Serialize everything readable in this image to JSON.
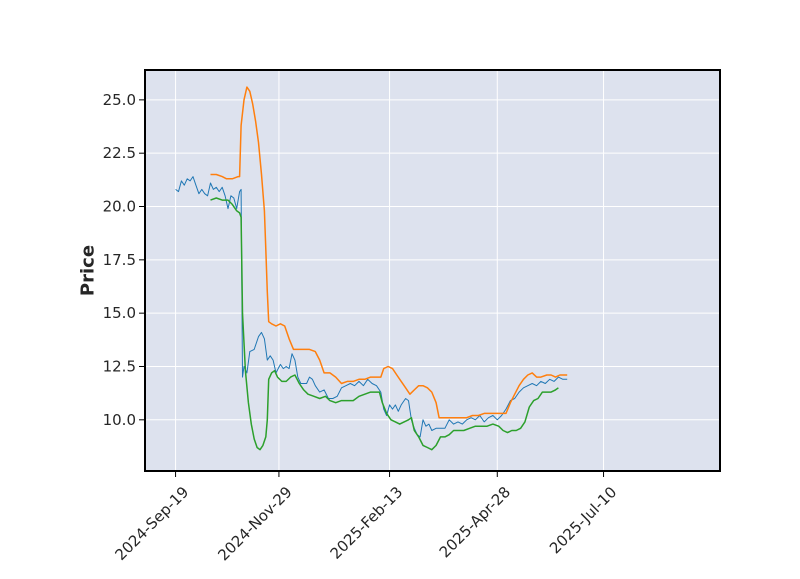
{
  "chart_data": {
    "type": "line",
    "title": "",
    "xlabel": "",
    "ylabel": "Price",
    "x_ticks": [
      "2024-Sep-19",
      "2024-Nov-29",
      "2025-Feb-13",
      "2025-Apr-28",
      "2025-Jul-10"
    ],
    "y_ticks": [
      "10.0",
      "12.5",
      "15.0",
      "17.5",
      "20.0",
      "22.5",
      "25.0"
    ],
    "xlim": [
      "2024-08-29",
      "2025-09-28"
    ],
    "ylim": [
      7.6,
      26.4
    ],
    "grid": true,
    "legend": "none",
    "background": "#dde2ee",
    "series": [
      {
        "color": "#1f77b4",
        "line_width": 1,
        "points": [
          [
            "2024-09-19",
            20.8
          ],
          [
            "2024-09-21",
            20.7
          ],
          [
            "2024-09-23",
            21.2
          ],
          [
            "2024-09-25",
            21.0
          ],
          [
            "2024-09-27",
            21.3
          ],
          [
            "2024-09-29",
            21.2
          ],
          [
            "2024-10-01",
            21.4
          ],
          [
            "2024-10-03",
            21.0
          ],
          [
            "2024-10-05",
            20.6
          ],
          [
            "2024-10-07",
            20.8
          ],
          [
            "2024-10-09",
            20.6
          ],
          [
            "2024-10-11",
            20.5
          ],
          [
            "2024-10-13",
            21.1
          ],
          [
            "2024-10-15",
            20.8
          ],
          [
            "2024-10-17",
            20.9
          ],
          [
            "2024-10-19",
            20.7
          ],
          [
            "2024-10-21",
            20.9
          ],
          [
            "2024-10-23",
            20.5
          ],
          [
            "2024-10-25",
            19.9
          ],
          [
            "2024-10-27",
            20.5
          ],
          [
            "2024-10-29",
            20.4
          ],
          [
            "2024-10-31",
            19.9
          ],
          [
            "2024-11-02",
            20.7
          ],
          [
            "2024-11-03",
            20.8
          ],
          [
            "2024-11-04",
            12.0
          ],
          [
            "2024-11-05",
            12.5
          ],
          [
            "2024-11-07",
            12.2
          ],
          [
            "2024-11-09",
            13.2
          ],
          [
            "2024-11-12",
            13.3
          ],
          [
            "2024-11-15",
            13.9
          ],
          [
            "2024-11-17",
            14.1
          ],
          [
            "2024-11-19",
            13.8
          ],
          [
            "2024-11-21",
            12.8
          ],
          [
            "2024-11-23",
            13.0
          ],
          [
            "2024-11-25",
            12.8
          ],
          [
            "2024-11-27",
            12.2
          ],
          [
            "2024-11-30",
            12.6
          ],
          [
            "2024-12-02",
            12.4
          ],
          [
            "2024-12-04",
            12.5
          ],
          [
            "2024-12-06",
            12.4
          ],
          [
            "2024-12-08",
            13.1
          ],
          [
            "2024-12-10",
            12.8
          ],
          [
            "2024-12-12",
            12.0
          ],
          [
            "2024-12-14",
            11.7
          ],
          [
            "2024-12-16",
            11.7
          ],
          [
            "2024-12-18",
            11.7
          ],
          [
            "2024-12-20",
            12.0
          ],
          [
            "2024-12-22",
            11.9
          ],
          [
            "2024-12-24",
            11.6
          ],
          [
            "2024-12-27",
            11.3
          ],
          [
            "2024-12-30",
            11.4
          ],
          [
            "2025-01-02",
            11.0
          ],
          [
            "2025-01-05",
            11.0
          ],
          [
            "2025-01-08",
            11.1
          ],
          [
            "2025-01-11",
            11.5
          ],
          [
            "2025-01-14",
            11.6
          ],
          [
            "2025-01-17",
            11.7
          ],
          [
            "2025-01-20",
            11.6
          ],
          [
            "2025-01-23",
            11.8
          ],
          [
            "2025-01-26",
            11.6
          ],
          [
            "2025-01-29",
            11.9
          ],
          [
            "2025-02-01",
            11.7
          ],
          [
            "2025-02-04",
            11.6
          ],
          [
            "2025-02-07",
            11.3
          ],
          [
            "2025-02-09",
            10.5
          ],
          [
            "2025-02-11",
            10.2
          ],
          [
            "2025-02-13",
            10.7
          ],
          [
            "2025-02-15",
            10.5
          ],
          [
            "2025-02-17",
            10.7
          ],
          [
            "2025-02-19",
            10.4
          ],
          [
            "2025-02-21",
            10.7
          ],
          [
            "2025-02-24",
            11.0
          ],
          [
            "2025-02-26",
            10.9
          ],
          [
            "2025-02-28",
            10.0
          ],
          [
            "2025-03-02",
            9.6
          ],
          [
            "2025-03-04",
            9.3
          ],
          [
            "2025-03-06",
            9.2
          ],
          [
            "2025-03-08",
            10.0
          ],
          [
            "2025-03-10",
            9.7
          ],
          [
            "2025-03-12",
            9.8
          ],
          [
            "2025-03-14",
            9.5
          ],
          [
            "2025-03-17",
            9.6
          ],
          [
            "2025-03-20",
            9.6
          ],
          [
            "2025-03-23",
            9.6
          ],
          [
            "2025-03-26",
            10.0
          ],
          [
            "2025-03-29",
            9.8
          ],
          [
            "2025-04-01",
            9.9
          ],
          [
            "2025-04-04",
            9.8
          ],
          [
            "2025-04-07",
            10.0
          ],
          [
            "2025-04-10",
            10.1
          ],
          [
            "2025-04-13",
            10.0
          ],
          [
            "2025-04-16",
            10.2
          ],
          [
            "2025-04-19",
            9.9
          ],
          [
            "2025-04-22",
            10.1
          ],
          [
            "2025-04-25",
            10.2
          ],
          [
            "2025-04-28",
            10.0
          ],
          [
            "2025-05-01",
            10.2
          ],
          [
            "2025-05-04",
            10.5
          ],
          [
            "2025-05-07",
            10.9
          ],
          [
            "2025-05-10",
            11.0
          ],
          [
            "2025-05-13",
            11.3
          ],
          [
            "2025-05-16",
            11.5
          ],
          [
            "2025-05-19",
            11.6
          ],
          [
            "2025-05-22",
            11.7
          ],
          [
            "2025-05-25",
            11.6
          ],
          [
            "2025-05-28",
            11.8
          ],
          [
            "2025-05-31",
            11.7
          ],
          [
            "2025-06-03",
            11.9
          ],
          [
            "2025-06-06",
            11.8
          ],
          [
            "2025-06-09",
            12.0
          ],
          [
            "2025-06-12",
            11.9
          ],
          [
            "2025-06-15",
            11.9
          ]
        ]
      },
      {
        "color": "#ff7f0e",
        "line_width": 1.5,
        "points": [
          [
            "2024-10-13",
            21.5
          ],
          [
            "2024-10-17",
            21.5
          ],
          [
            "2024-10-21",
            21.4
          ],
          [
            "2024-10-24",
            21.3
          ],
          [
            "2024-10-28",
            21.3
          ],
          [
            "2024-11-01",
            21.4
          ],
          [
            "2024-11-02",
            21.4
          ],
          [
            "2024-11-03",
            23.8
          ],
          [
            "2024-11-05",
            25.0
          ],
          [
            "2024-11-07",
            25.6
          ],
          [
            "2024-11-09",
            25.4
          ],
          [
            "2024-11-11",
            24.8
          ],
          [
            "2024-11-13",
            24.0
          ],
          [
            "2024-11-15",
            23.0
          ],
          [
            "2024-11-17",
            21.5
          ],
          [
            "2024-11-19",
            19.8
          ],
          [
            "2024-11-20",
            18.0
          ],
          [
            "2024-11-21",
            16.0
          ],
          [
            "2024-11-22",
            14.6
          ],
          [
            "2024-11-24",
            14.5
          ],
          [
            "2024-11-27",
            14.4
          ],
          [
            "2024-11-30",
            14.5
          ],
          [
            "2024-12-03",
            14.4
          ],
          [
            "2024-12-06",
            13.8
          ],
          [
            "2024-12-09",
            13.3
          ],
          [
            "2024-12-12",
            13.3
          ],
          [
            "2024-12-16",
            13.3
          ],
          [
            "2024-12-20",
            13.3
          ],
          [
            "2024-12-24",
            13.2
          ],
          [
            "2024-12-27",
            12.8
          ],
          [
            "2024-12-30",
            12.2
          ],
          [
            "2025-01-03",
            12.2
          ],
          [
            "2025-01-07",
            12.0
          ],
          [
            "2025-01-11",
            11.7
          ],
          [
            "2025-01-15",
            11.8
          ],
          [
            "2025-01-19",
            11.8
          ],
          [
            "2025-01-23",
            11.9
          ],
          [
            "2025-01-27",
            11.9
          ],
          [
            "2025-01-31",
            12.0
          ],
          [
            "2025-02-04",
            12.0
          ],
          [
            "2025-02-07",
            12.0
          ],
          [
            "2025-02-09",
            12.4
          ],
          [
            "2025-02-12",
            12.5
          ],
          [
            "2025-02-15",
            12.4
          ],
          [
            "2025-02-18",
            12.1
          ],
          [
            "2025-02-21",
            11.8
          ],
          [
            "2025-02-24",
            11.5
          ],
          [
            "2025-02-27",
            11.2
          ],
          [
            "2025-03-02",
            11.4
          ],
          [
            "2025-03-05",
            11.6
          ],
          [
            "2025-03-08",
            11.6
          ],
          [
            "2025-03-11",
            11.5
          ],
          [
            "2025-03-14",
            11.3
          ],
          [
            "2025-03-17",
            10.8
          ],
          [
            "2025-03-19",
            10.1
          ],
          [
            "2025-03-22",
            10.1
          ],
          [
            "2025-03-26",
            10.1
          ],
          [
            "2025-03-30",
            10.1
          ],
          [
            "2025-04-03",
            10.1
          ],
          [
            "2025-04-07",
            10.1
          ],
          [
            "2025-04-11",
            10.2
          ],
          [
            "2025-04-15",
            10.2
          ],
          [
            "2025-04-19",
            10.3
          ],
          [
            "2025-04-23",
            10.3
          ],
          [
            "2025-04-27",
            10.3
          ],
          [
            "2025-05-01",
            10.3
          ],
          [
            "2025-05-04",
            10.3
          ],
          [
            "2025-05-07",
            10.8
          ],
          [
            "2025-05-10",
            11.2
          ],
          [
            "2025-05-13",
            11.6
          ],
          [
            "2025-05-16",
            11.9
          ],
          [
            "2025-05-19",
            12.1
          ],
          [
            "2025-05-22",
            12.2
          ],
          [
            "2025-05-25",
            12.0
          ],
          [
            "2025-05-28",
            12.0
          ],
          [
            "2025-06-01",
            12.1
          ],
          [
            "2025-06-04",
            12.1
          ],
          [
            "2025-06-07",
            12.0
          ],
          [
            "2025-06-10",
            12.1
          ],
          [
            "2025-06-15",
            12.1
          ]
        ]
      },
      {
        "color": "#2ca02c",
        "line_width": 1.5,
        "points": [
          [
            "2024-10-13",
            20.3
          ],
          [
            "2024-10-17",
            20.4
          ],
          [
            "2024-10-21",
            20.3
          ],
          [
            "2024-10-25",
            20.3
          ],
          [
            "2024-10-28",
            20.1
          ],
          [
            "2024-10-31",
            19.8
          ],
          [
            "2024-11-02",
            19.7
          ],
          [
            "2024-11-03",
            19.5
          ],
          [
            "2024-11-04",
            15.0
          ],
          [
            "2024-11-06",
            12.3
          ],
          [
            "2024-11-08",
            10.8
          ],
          [
            "2024-11-10",
            9.8
          ],
          [
            "2024-11-12",
            9.1
          ],
          [
            "2024-11-14",
            8.7
          ],
          [
            "2024-11-16",
            8.6
          ],
          [
            "2024-11-18",
            8.8
          ],
          [
            "2024-11-20",
            9.2
          ],
          [
            "2024-11-21",
            10.0
          ],
          [
            "2024-11-22",
            11.9
          ],
          [
            "2024-11-24",
            12.2
          ],
          [
            "2024-11-26",
            12.3
          ],
          [
            "2024-11-28",
            12.0
          ],
          [
            "2024-12-01",
            11.8
          ],
          [
            "2024-12-04",
            11.8
          ],
          [
            "2024-12-07",
            12.0
          ],
          [
            "2024-12-10",
            12.1
          ],
          [
            "2024-12-13",
            11.7
          ],
          [
            "2024-12-16",
            11.4
          ],
          [
            "2024-12-19",
            11.2
          ],
          [
            "2024-12-23",
            11.1
          ],
          [
            "2024-12-27",
            11.0
          ],
          [
            "2024-12-31",
            11.1
          ],
          [
            "2025-01-03",
            10.9
          ],
          [
            "2025-01-07",
            10.8
          ],
          [
            "2025-01-11",
            10.9
          ],
          [
            "2025-01-15",
            10.9
          ],
          [
            "2025-01-19",
            10.9
          ],
          [
            "2025-01-23",
            11.1
          ],
          [
            "2025-01-27",
            11.2
          ],
          [
            "2025-01-31",
            11.3
          ],
          [
            "2025-02-04",
            11.3
          ],
          [
            "2025-02-06",
            11.3
          ],
          [
            "2025-02-08",
            10.8
          ],
          [
            "2025-02-11",
            10.3
          ],
          [
            "2025-02-14",
            10.0
          ],
          [
            "2025-02-17",
            9.9
          ],
          [
            "2025-02-20",
            9.8
          ],
          [
            "2025-02-23",
            9.9
          ],
          [
            "2025-02-26",
            10.0
          ],
          [
            "2025-02-28",
            10.1
          ],
          [
            "2025-03-02",
            9.5
          ],
          [
            "2025-03-05",
            9.2
          ],
          [
            "2025-03-08",
            8.8
          ],
          [
            "2025-03-11",
            8.7
          ],
          [
            "2025-03-14",
            8.6
          ],
          [
            "2025-03-17",
            8.8
          ],
          [
            "2025-03-20",
            9.2
          ],
          [
            "2025-03-23",
            9.2
          ],
          [
            "2025-03-26",
            9.3
          ],
          [
            "2025-03-29",
            9.5
          ],
          [
            "2025-04-01",
            9.5
          ],
          [
            "2025-04-05",
            9.5
          ],
          [
            "2025-04-09",
            9.6
          ],
          [
            "2025-04-13",
            9.7
          ],
          [
            "2025-04-17",
            9.7
          ],
          [
            "2025-04-21",
            9.7
          ],
          [
            "2025-04-25",
            9.8
          ],
          [
            "2025-04-29",
            9.7
          ],
          [
            "2025-05-02",
            9.5
          ],
          [
            "2025-05-05",
            9.4
          ],
          [
            "2025-05-08",
            9.5
          ],
          [
            "2025-05-11",
            9.5
          ],
          [
            "2025-05-14",
            9.6
          ],
          [
            "2025-05-17",
            9.9
          ],
          [
            "2025-05-20",
            10.6
          ],
          [
            "2025-05-23",
            10.9
          ],
          [
            "2025-05-26",
            11.0
          ],
          [
            "2025-05-29",
            11.3
          ],
          [
            "2025-06-01",
            11.3
          ],
          [
            "2025-06-04",
            11.3
          ],
          [
            "2025-06-07",
            11.4
          ],
          [
            "2025-06-09",
            11.5
          ]
        ]
      }
    ]
  }
}
